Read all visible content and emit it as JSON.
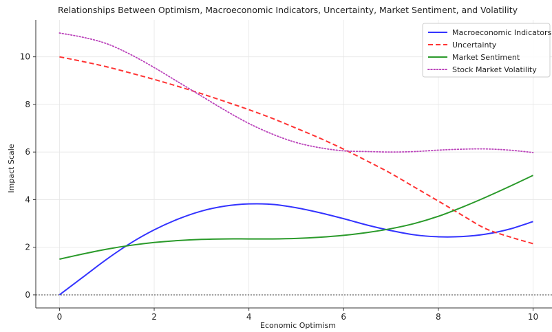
{
  "chart_data": {
    "type": "line",
    "title": "Relationships Between Optimism, Macroeconomic Indicators, Uncertainty, Market Sentiment, and Volatility",
    "xlabel": "Economic Optimism",
    "ylabel": "Impact Scale",
    "xlim": [
      -0.5,
      10.4
    ],
    "ylim": [
      -0.55,
      11.55
    ],
    "xticks": [
      "0",
      "2",
      "4",
      "6",
      "8",
      "10"
    ],
    "yticks": [
      "0",
      "2",
      "4",
      "6",
      "8",
      "10"
    ],
    "grid": true,
    "legend_position": "top-right",
    "hline_y": 0,
    "x": [
      0,
      0.5,
      1,
      1.5,
      2,
      2.5,
      3,
      3.5,
      4,
      4.5,
      5,
      5.5,
      6,
      6.5,
      7,
      7.5,
      8,
      8.5,
      9,
      9.5,
      10
    ],
    "series": [
      {
        "name": "Macroeconomic Indicators",
        "color": "#3333ff",
        "style": "solid",
        "values": [
          0.0,
          0.75,
          1.5,
          2.17,
          2.73,
          3.18,
          3.52,
          3.73,
          3.82,
          3.8,
          3.66,
          3.45,
          3.2,
          2.93,
          2.7,
          2.52,
          2.44,
          2.45,
          2.55,
          2.76,
          3.08
        ]
      },
      {
        "name": "Uncertainty",
        "color": "#ff3333",
        "style": "dashed",
        "values": [
          10.0,
          9.8,
          9.58,
          9.32,
          9.05,
          8.76,
          8.45,
          8.12,
          7.78,
          7.41,
          7.0,
          6.58,
          6.12,
          5.62,
          5.1,
          4.52,
          3.94,
          3.35,
          2.78,
          2.44,
          2.15
        ]
      },
      {
        "name": "Market Sentiment",
        "color": "#2a9a2a",
        "style": "solid",
        "values": [
          1.5,
          1.72,
          1.92,
          2.08,
          2.2,
          2.28,
          2.33,
          2.35,
          2.35,
          2.35,
          2.37,
          2.42,
          2.5,
          2.62,
          2.78,
          3.0,
          3.3,
          3.68,
          4.1,
          4.55,
          5.02
        ]
      },
      {
        "name": "Stock Market Volatility",
        "color": "#bb44bb",
        "style": "dotted",
        "values": [
          11.0,
          10.82,
          10.55,
          10.1,
          9.55,
          8.95,
          8.35,
          7.75,
          7.2,
          6.75,
          6.4,
          6.18,
          6.05,
          6.02,
          6.0,
          6.02,
          6.08,
          6.12,
          6.13,
          6.08,
          5.98
        ]
      }
    ]
  }
}
